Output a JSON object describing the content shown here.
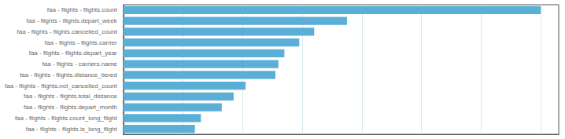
{
  "chart_data": {
    "type": "bar",
    "orientation": "horizontal",
    "categories": [
      "faa - flights - flights.count",
      "faa - flights - flights.depart_week",
      "faa - flights - flights.cancelled_count",
      "faa - flights - flights.carrier",
      "faa - flights - flights.depart_year",
      "faa - flights - carriers.name",
      "faa - flights - flights.distance_tiered",
      "faa - flights - flights.not_cancelled_count",
      "faa - flights - flights.total_distance",
      "faa - flights - flights.depart_month",
      "faa - flights - flights.count_long_flight",
      "faa - flights - flights.is_long_flight"
    ],
    "values": [
      700,
      375,
      320,
      295,
      270,
      260,
      255,
      205,
      185,
      165,
      130,
      120
    ],
    "color": "#5bafd6",
    "xlim": [
      0,
      730
    ],
    "xticks": [
      0,
      100,
      200,
      300,
      400,
      500,
      600,
      700
    ],
    "grid": true,
    "tick_labels": "y"
  }
}
